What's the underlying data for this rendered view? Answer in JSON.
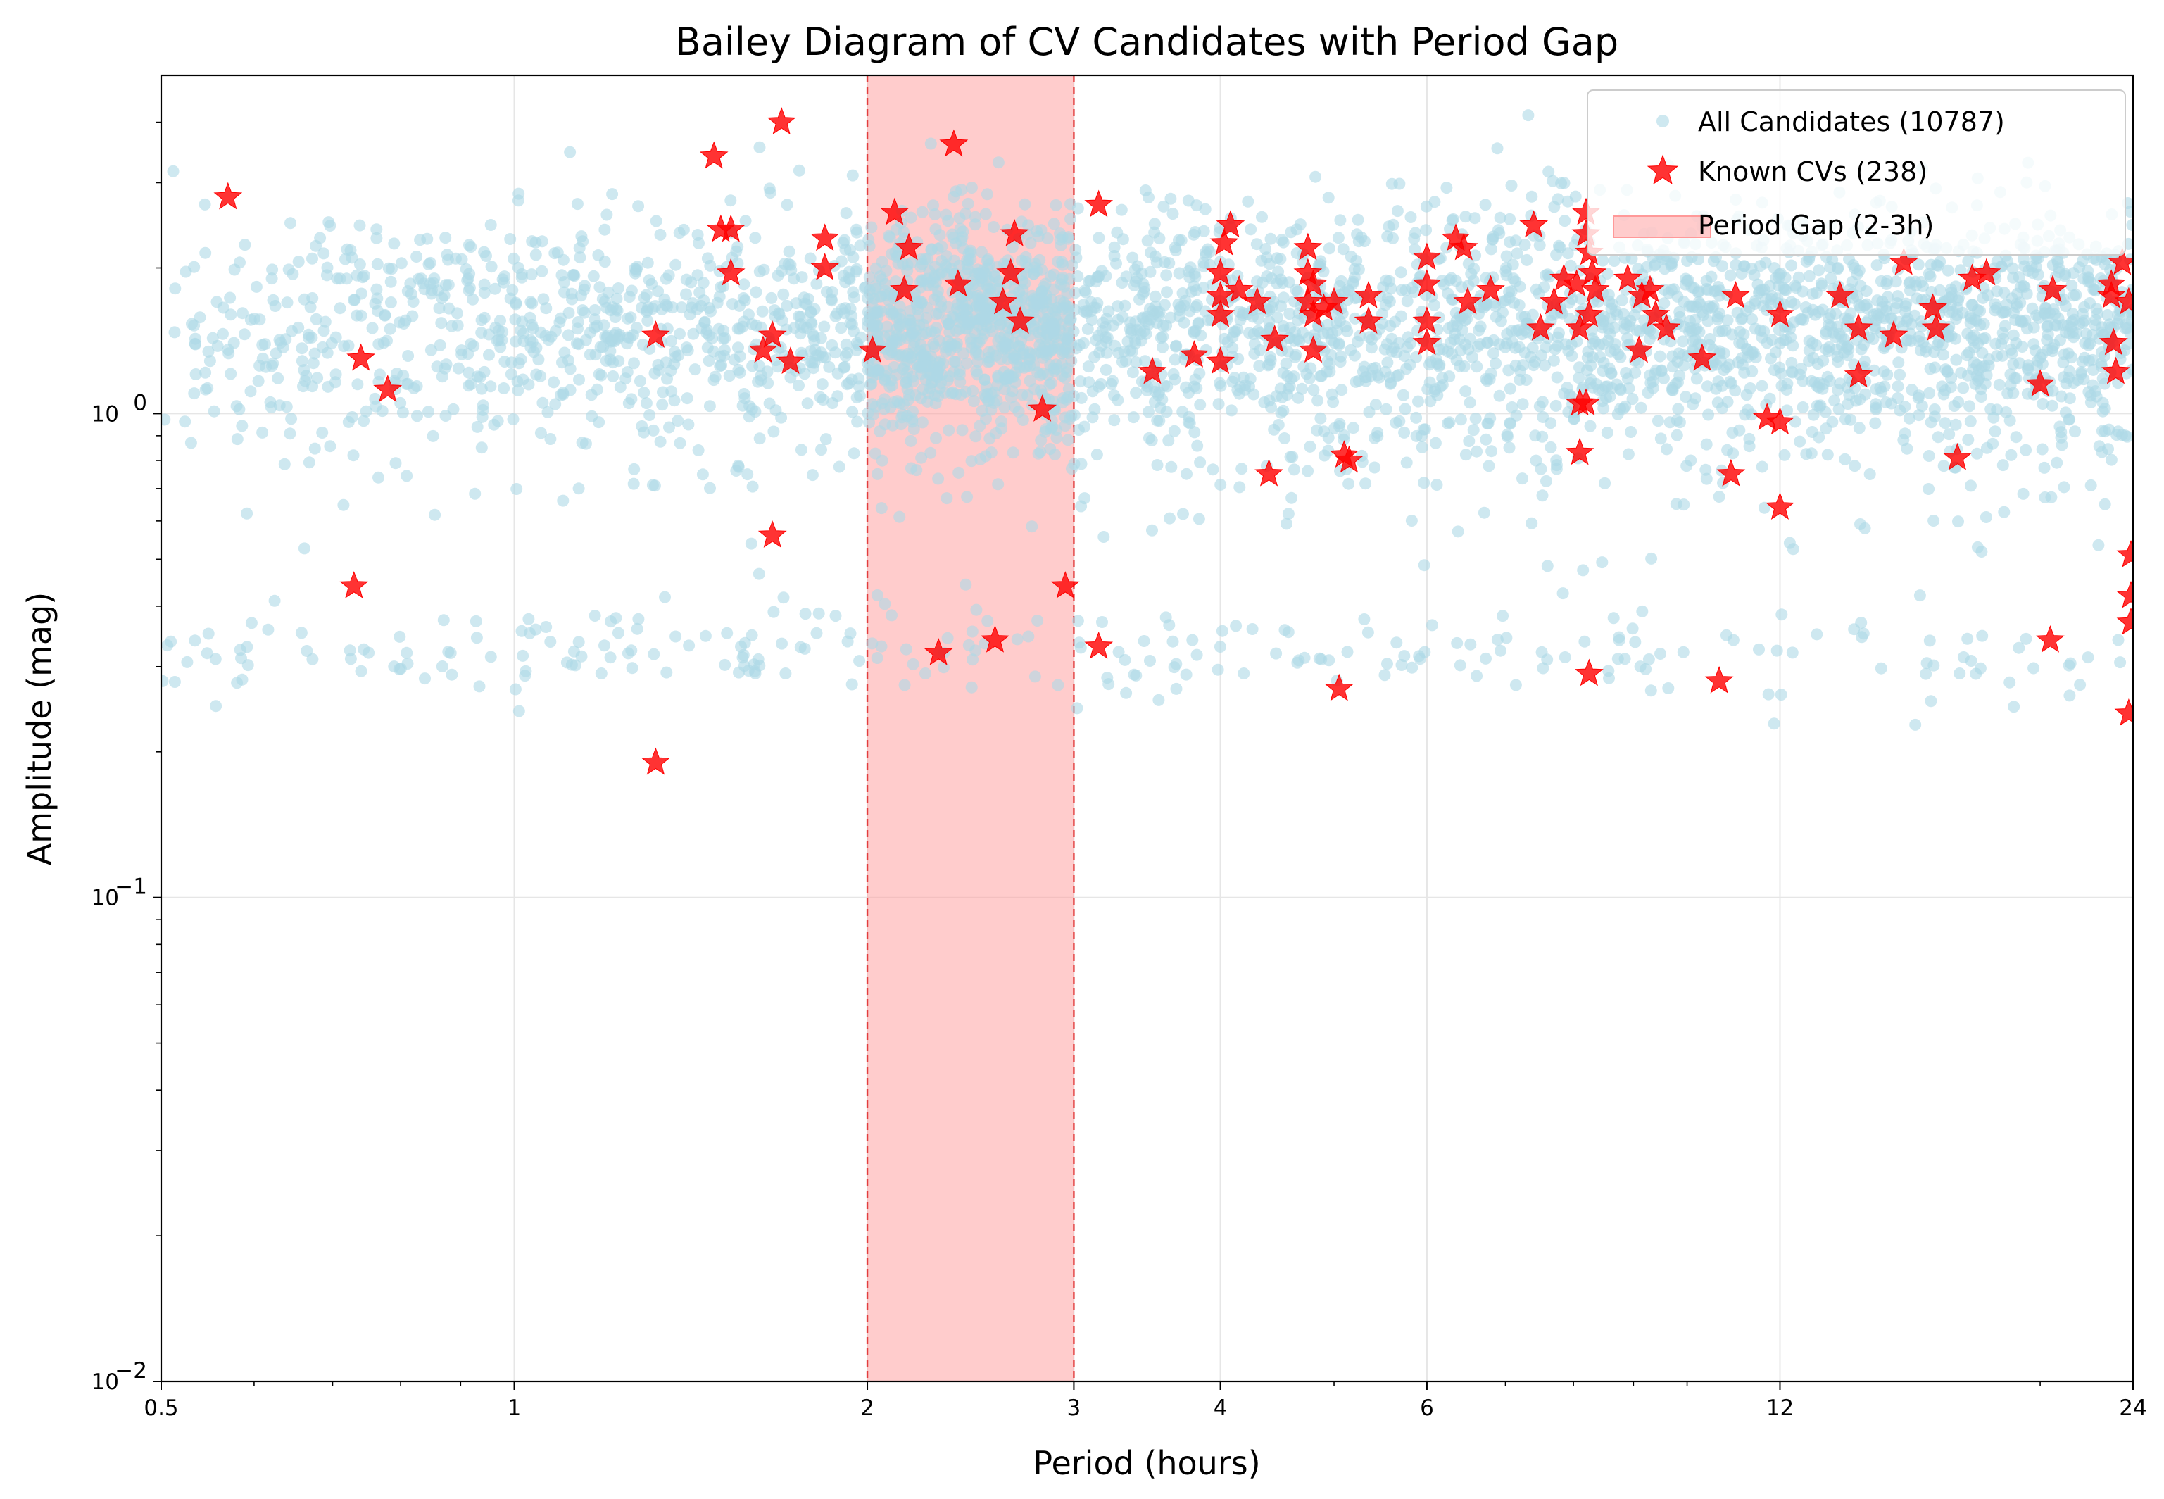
{
  "chart_data": {
    "type": "scatter",
    "title": "Bailey Diagram of CV Candidates with Period Gap",
    "xlabel": "Period (hours)",
    "ylabel": "Amplitude (mag)",
    "x_scale": "log",
    "y_scale": "log",
    "xlim": [
      0.5,
      24
    ],
    "ylim": [
      0.01,
      5.0
    ],
    "x_ticks": [
      0.5,
      1,
      2,
      3,
      4,
      6,
      12,
      24
    ],
    "x_tick_labels": [
      "0.5",
      "1",
      "2",
      "3",
      "4",
      "6",
      "12",
      "24"
    ],
    "y_ticks": [
      0.01,
      0.1,
      1.0
    ],
    "y_tick_labels": [
      {
        "base": "10",
        "exp": "−2"
      },
      {
        "base": "10",
        "exp": "−1"
      },
      {
        "base": "10",
        "exp": "0"
      }
    ],
    "grid": true,
    "legend_position": "top-right",
    "colors": {
      "candidates": "#add8e6",
      "known": "#ff0000",
      "gap_fill": "#ff9999",
      "gap_edge": "#e03030",
      "grid": "#e6e6e6"
    },
    "series": [
      {
        "name": "All Candidates (10787)",
        "marker": "circle",
        "count": 10787,
        "bands": [
          {
            "x": [
              0.5,
              24
            ],
            "y_center": 1.55,
            "y_spread": 0.19,
            "points": 2600
          },
          {
            "x": [
              0.5,
              24
            ],
            "y_center": 1.15,
            "y_spread": 0.26,
            "points": 700
          },
          {
            "x": [
              0.5,
              24
            ],
            "y_center": 0.32,
            "y_spread": 0.08,
            "points": 260
          },
          {
            "x": [
              2.0,
              3.0
            ],
            "y_center": 1.45,
            "y_spread": 0.2,
            "points": 500
          }
        ]
      },
      {
        "name": "Known CVs (238)",
        "marker": "star",
        "count": 238,
        "points": [
          [
            0.57,
            2.8
          ],
          [
            0.74,
            1.3
          ],
          [
            0.78,
            1.12
          ],
          [
            0.73,
            0.44
          ],
          [
            1.32,
            1.45
          ],
          [
            1.32,
            0.19
          ],
          [
            1.48,
            3.4
          ],
          [
            1.5,
            2.4
          ],
          [
            1.53,
            2.4
          ],
          [
            1.53,
            1.95
          ],
          [
            1.63,
            1.35
          ],
          [
            1.66,
            1.45
          ],
          [
            1.66,
            0.56
          ],
          [
            1.69,
            4.0
          ],
          [
            1.72,
            1.28
          ],
          [
            1.84,
            2.3
          ],
          [
            1.84,
            2.0
          ],
          [
            2.02,
            1.35
          ],
          [
            2.11,
            2.6
          ],
          [
            2.15,
            1.8
          ],
          [
            2.17,
            2.2
          ],
          [
            2.3,
            0.32
          ],
          [
            2.37,
            3.6
          ],
          [
            2.39,
            1.85
          ],
          [
            2.57,
            0.34
          ],
          [
            2.61,
            1.7
          ],
          [
            2.65,
            1.95
          ],
          [
            2.67,
            2.35
          ],
          [
            2.7,
            1.55
          ],
          [
            2.82,
            1.02
          ],
          [
            2.95,
            0.44
          ],
          [
            3.15,
            2.7
          ],
          [
            3.15,
            0.33
          ],
          [
            3.5,
            1.22
          ],
          [
            3.8,
            1.32
          ],
          [
            4.0,
            1.28
          ],
          [
            4.0,
            1.6
          ],
          [
            4.0,
            1.75
          ],
          [
            4.0,
            1.95
          ],
          [
            4.03,
            2.25
          ],
          [
            4.08,
            2.45
          ],
          [
            4.15,
            1.8
          ],
          [
            4.3,
            1.7
          ],
          [
            4.45,
            1.42
          ],
          [
            4.4,
            0.75
          ],
          [
            4.75,
            2.2
          ],
          [
            4.75,
            1.95
          ],
          [
            4.8,
            1.85
          ],
          [
            4.75,
            1.7
          ],
          [
            4.8,
            1.6
          ],
          [
            4.8,
            1.35
          ],
          [
            4.9,
            1.65
          ],
          [
            5.0,
            1.7
          ],
          [
            5.05,
            0.27
          ],
          [
            5.1,
            0.82
          ],
          [
            5.15,
            0.8
          ],
          [
            5.35,
            1.75
          ],
          [
            5.35,
            1.55
          ],
          [
            6.0,
            2.1
          ],
          [
            6.0,
            1.85
          ],
          [
            6.0,
            1.55
          ],
          [
            6.0,
            1.4
          ],
          [
            6.35,
            2.3
          ],
          [
            6.45,
            2.2
          ],
          [
            6.5,
            1.7
          ],
          [
            6.8,
            1.8
          ],
          [
            7.4,
            2.45
          ],
          [
            7.5,
            1.5
          ],
          [
            7.7,
            1.7
          ],
          [
            7.85,
            1.9
          ],
          [
            8.05,
            1.85
          ],
          [
            8.1,
            1.5
          ],
          [
            8.1,
            1.05
          ],
          [
            8.2,
            1.05
          ],
          [
            8.1,
            0.83
          ],
          [
            8.25,
            0.29
          ],
          [
            8.2,
            2.6
          ],
          [
            8.2,
            2.35
          ],
          [
            8.25,
            2.15
          ],
          [
            8.3,
            1.95
          ],
          [
            8.35,
            1.8
          ],
          [
            8.25,
            1.6
          ],
          [
            8.9,
            1.9
          ],
          [
            9.1,
            1.35
          ],
          [
            9.15,
            1.75
          ],
          [
            9.3,
            1.8
          ],
          [
            9.4,
            1.6
          ],
          [
            9.6,
            1.5
          ],
          [
            10.3,
            1.3
          ],
          [
            10.65,
            0.28
          ],
          [
            11.0,
            1.75
          ],
          [
            10.9,
            0.75
          ],
          [
            11.7,
            0.98
          ],
          [
            12.0,
            1.6
          ],
          [
            12.0,
            0.96
          ],
          [
            12.0,
            0.64
          ],
          [
            13.5,
            1.75
          ],
          [
            14.0,
            1.5
          ],
          [
            14.0,
            1.2
          ],
          [
            15.0,
            1.45
          ],
          [
            15.3,
            2.05
          ],
          [
            16.2,
            1.65
          ],
          [
            16.3,
            1.5
          ],
          [
            17.0,
            0.81
          ],
          [
            17.5,
            1.9
          ],
          [
            18.0,
            1.95
          ],
          [
            20.0,
            1.15
          ],
          [
            20.4,
            0.34
          ],
          [
            20.5,
            1.8
          ],
          [
            23.0,
            1.85
          ],
          [
            23.0,
            1.75
          ],
          [
            23.1,
            1.4
          ],
          [
            23.2,
            1.22
          ],
          [
            23.5,
            2.05
          ],
          [
            23.8,
            1.7
          ],
          [
            23.9,
            0.37
          ],
          [
            23.8,
            0.24
          ],
          [
            23.9,
            0.42
          ],
          [
            23.9,
            0.51
          ]
        ]
      },
      {
        "name": "Period Gap (2-3h)",
        "marker": "span",
        "x_range": [
          2,
          3
        ]
      }
    ]
  }
}
